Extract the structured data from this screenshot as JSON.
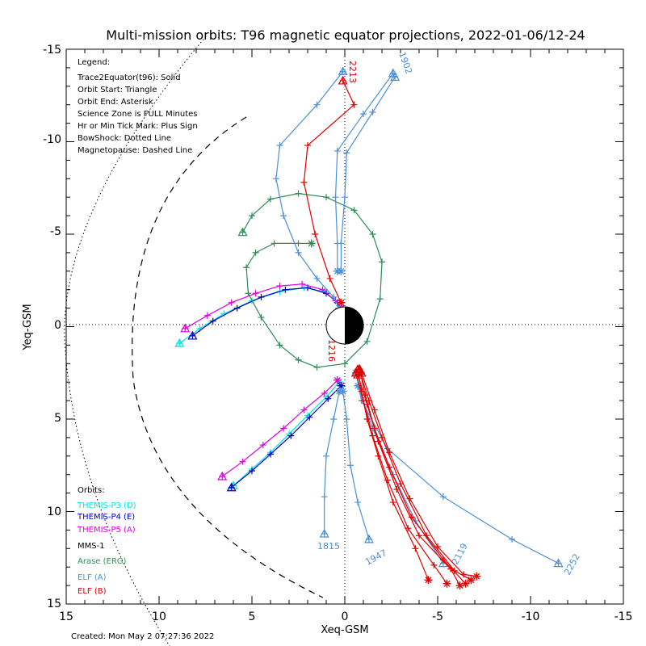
{
  "chart_data": {
    "type": "line",
    "title": "Multi-mission orbits: T96 magnetic equator projections, 2022-01-06/12-24",
    "xlabel": "Xeq-GSM",
    "ylabel": "Yeq-GSM",
    "xlim": [
      15,
      -15
    ],
    "ylim": [
      15,
      -15
    ],
    "x_ticks": [
      "15",
      "10",
      "5",
      "0",
      "-5",
      "-10",
      "-15"
    ],
    "y_ticks": [
      "-15",
      "-10",
      "-5",
      "0",
      "5",
      "10",
      "15"
    ],
    "legend_title": "Legend:",
    "legend_lines": [
      "Trace2Equator(t96): Solid",
      "Orbit Start: Triangle",
      "Orbit End: Asterisk",
      "Science Zone is FULL Minutes",
      "Hr or Min Tick Mark: Plus Sign",
      "BowShock: Dotted Line",
      "Magnetopause: Dashed Line"
    ],
    "orbits_title": "Orbits:",
    "missions": [
      {
        "name": "THEMIS-P3 (D)",
        "color": "#00e5e5"
      },
      {
        "name": "THEMIS-P4 (E)",
        "color": "#0000c8"
      },
      {
        "name": "THEMIS-P5 (A)",
        "color": "#e000e0"
      },
      {
        "name": "MMS-1",
        "color": "#000000"
      },
      {
        "name": "Arase (ERG)",
        "color": "#2e8b57"
      },
      {
        "name": "ELF (A)",
        "color": "#4a90d9"
      },
      {
        "name": "ELF (B)",
        "color": "#e00000"
      }
    ],
    "annotations": [
      "2213",
      "1902",
      "1216",
      "1815",
      "1947",
      "2252",
      "2119"
    ],
    "footer": "Created: Mon May  2 07:27:36 2022",
    "series": [
      {
        "name": "THEMIS-P3 (D)",
        "color": "#00e5e5",
        "points": [
          [
            8.9,
            0.9
          ],
          [
            7.8,
            0.1
          ],
          [
            6.5,
            -0.7
          ],
          [
            5.0,
            -1.4
          ],
          [
            3.5,
            -1.9
          ],
          [
            2.2,
            -2.1
          ],
          [
            1.1,
            -1.9
          ],
          [
            0.4,
            -1.3
          ],
          [
            0.2,
            -1.0
          ]
        ]
      },
      {
        "name": "THEMIS-P4 (E)",
        "color": "#0000c8",
        "points": [
          [
            8.2,
            0.5
          ],
          [
            7.1,
            -0.3
          ],
          [
            5.8,
            -1.0
          ],
          [
            4.5,
            -1.6
          ],
          [
            3.2,
            -2.0
          ],
          [
            2.0,
            -2.1
          ],
          [
            1.0,
            -1.8
          ],
          [
            0.4,
            -1.3
          ],
          [
            0.2,
            -1.0
          ]
        ]
      },
      {
        "name": "THEMIS-P5 (A)",
        "color": "#e000e0",
        "points": [
          [
            8.6,
            0.1
          ],
          [
            7.4,
            -0.6
          ],
          [
            6.1,
            -1.3
          ],
          [
            4.8,
            -1.8
          ],
          [
            3.5,
            -2.2
          ],
          [
            2.3,
            -2.3
          ],
          [
            1.2,
            -2.0
          ],
          [
            0.5,
            -1.4
          ],
          [
            0.2,
            -1.0
          ]
        ]
      },
      {
        "name": "THEMIS-P3 (D) dusk",
        "color": "#00e5e5",
        "points": [
          [
            6.0,
            8.6
          ],
          [
            5.0,
            7.7
          ],
          [
            4.0,
            6.8
          ],
          [
            3.0,
            5.8
          ],
          [
            2.0,
            4.8
          ],
          [
            1.0,
            3.8
          ],
          [
            0.3,
            3.0
          ]
        ]
      },
      {
        "name": "THEMIS-P4 (E) dusk",
        "color": "#0000c8",
        "points": [
          [
            6.1,
            8.7
          ],
          [
            5.0,
            7.8
          ],
          [
            4.0,
            6.9
          ],
          [
            2.9,
            5.9
          ],
          [
            1.9,
            4.9
          ],
          [
            0.9,
            3.9
          ],
          [
            0.2,
            3.2
          ]
        ]
      },
      {
        "name": "THEMIS-P5 (A) dusk",
        "color": "#e000e0",
        "points": [
          [
            6.6,
            8.1
          ],
          [
            5.5,
            7.3
          ],
          [
            4.4,
            6.4
          ],
          [
            3.3,
            5.5
          ],
          [
            2.2,
            4.5
          ],
          [
            1.1,
            3.6
          ],
          [
            0.4,
            2.9
          ]
        ]
      },
      {
        "name": "Arase (ERG)",
        "color": "#2e8b57",
        "points": [
          [
            5.5,
            -5.1
          ],
          [
            5.0,
            -6.0
          ],
          [
            4.0,
            -6.9
          ],
          [
            2.5,
            -7.2
          ],
          [
            1.0,
            -7.0
          ],
          [
            -0.5,
            -6.3
          ],
          [
            -1.5,
            -5.0
          ],
          [
            -2.0,
            -3.5
          ],
          [
            -1.9,
            -1.5
          ],
          [
            -1.2,
            0.8
          ],
          [
            0.0,
            2.0
          ],
          [
            1.5,
            2.2
          ],
          [
            2.5,
            1.8
          ],
          [
            3.5,
            1.0
          ],
          [
            4.5,
            -0.5
          ],
          [
            5.2,
            -1.8
          ],
          [
            5.3,
            -3.2
          ],
          [
            4.8,
            -4.0
          ],
          [
            3.8,
            -4.5
          ],
          [
            2.5,
            -4.5
          ],
          [
            1.8,
            -4.5
          ]
        ]
      },
      {
        "name": "ELF (A)",
        "color": "#4a90d9",
        "points": [
          [
            0.1,
            -13.8
          ],
          [
            1.5,
            -12.0
          ],
          [
            3.5,
            -9.8
          ],
          [
            3.7,
            -8.0
          ],
          [
            3.3,
            -6.0
          ],
          [
            2.5,
            -4.0
          ],
          [
            1.5,
            -2.6
          ],
          [
            0.6,
            -1.6
          ],
          [
            0.3,
            -1.0
          ]
        ]
      },
      {
        "name": "ELF (A) 1902",
        "color": "#4a90d9",
        "points": [
          [
            -2.6,
            -13.7
          ],
          [
            -1.0,
            -11.5
          ],
          [
            0.4,
            -9.5
          ],
          [
            0.5,
            -7.0
          ],
          [
            0.4,
            -4.5
          ],
          [
            0.4,
            -3.0
          ]
        ]
      },
      {
        "name": "ELF (A) 1902b",
        "color": "#4a90d9",
        "points": [
          [
            -2.7,
            -13.5
          ],
          [
            -1.5,
            -11.6
          ],
          [
            -0.1,
            -9.4
          ],
          [
            0.0,
            -7.0
          ],
          [
            0.2,
            -4.5
          ],
          [
            0.2,
            -3.0
          ]
        ]
      },
      {
        "name": "ELF (A) 1815",
        "color": "#4a90d9",
        "points": [
          [
            1.1,
            11.2
          ],
          [
            1.1,
            9.2
          ],
          [
            1.0,
            7.0
          ],
          [
            0.6,
            5.0
          ],
          [
            0.3,
            3.5
          ]
        ]
      },
      {
        "name": "ELF (A) 1947",
        "color": "#4a90d9",
        "points": [
          [
            -1.3,
            11.5
          ],
          [
            -0.7,
            9.5
          ],
          [
            -0.3,
            7.5
          ],
          [
            -0.1,
            5.0
          ],
          [
            0.1,
            3.5
          ]
        ]
      },
      {
        "name": "ELF (A) 2252",
        "color": "#4a90d9",
        "points": [
          [
            -11.5,
            12.8
          ],
          [
            -9.0,
            11.5
          ],
          [
            -5.3,
            9.2
          ],
          [
            -2.3,
            6.6
          ],
          [
            -0.9,
            4.0
          ],
          [
            -0.6,
            2.5
          ]
        ]
      },
      {
        "name": "ELF (A) 2119",
        "color": "#4a90d9",
        "points": [
          [
            -5.3,
            12.8
          ],
          [
            -3.8,
            10.5
          ],
          [
            -2.6,
            8.0
          ],
          [
            -1.5,
            5.5
          ],
          [
            -0.7,
            3.2
          ]
        ]
      },
      {
        "name": "ELF (B)",
        "color": "#e00000",
        "points": [
          [
            0.1,
            -13.3
          ],
          [
            -0.5,
            -12.0
          ],
          [
            2.0,
            -9.8
          ],
          [
            2.2,
            -7.8
          ],
          [
            1.6,
            -5.0
          ],
          [
            0.8,
            -2.6
          ],
          [
            0.2,
            -1.3
          ]
        ]
      },
      {
        "name": "ELF (B) 1216",
        "color": "#e00000",
        "points": [
          [
            -0.7,
            2.3
          ],
          [
            -0.9,
            3.5
          ],
          [
            -1.2,
            5.0
          ],
          [
            -1.8,
            7.0
          ],
          [
            -2.6,
            9.5
          ],
          [
            -3.8,
            12.0
          ],
          [
            -4.5,
            13.7
          ]
        ]
      },
      {
        "name": "ELF (B) b",
        "color": "#e00000",
        "points": [
          [
            -0.8,
            2.3
          ],
          [
            -1.1,
            3.7
          ],
          [
            -1.6,
            5.5
          ],
          [
            -2.4,
            7.6
          ],
          [
            -3.6,
            10.3
          ],
          [
            -5.3,
            12.6
          ],
          [
            -6.5,
            13.9
          ]
        ]
      },
      {
        "name": "ELF (B) c",
        "color": "#e00000",
        "points": [
          [
            -0.8,
            2.4
          ],
          [
            -1.3,
            4.0
          ],
          [
            -2.0,
            6.0
          ],
          [
            -3.0,
            8.5
          ],
          [
            -4.4,
            11.3
          ],
          [
            -5.9,
            13.2
          ],
          [
            -6.8,
            13.7
          ]
        ]
      },
      {
        "name": "ELF (B) d",
        "color": "#e00000",
        "points": [
          [
            -0.9,
            2.5
          ],
          [
            -1.6,
            4.5
          ],
          [
            -2.4,
            6.8
          ],
          [
            -3.5,
            9.3
          ],
          [
            -5.0,
            11.9
          ],
          [
            -6.4,
            13.4
          ],
          [
            -7.1,
            13.5
          ]
        ]
      },
      {
        "name": "ELF (B) e",
        "color": "#e00000",
        "points": [
          [
            -0.7,
            2.6
          ],
          [
            -1.2,
            4.2
          ],
          [
            -1.8,
            6.2
          ],
          [
            -2.8,
            8.8
          ],
          [
            -4.0,
            11.3
          ],
          [
            -5.7,
            13.1
          ],
          [
            -6.2,
            14.0
          ]
        ]
      },
      {
        "name": "ELF (B) f",
        "color": "#e00000",
        "points": [
          [
            -0.6,
            2.5
          ],
          [
            -1.0,
            4.0
          ],
          [
            -1.5,
            5.9
          ],
          [
            -2.3,
            8.3
          ],
          [
            -3.4,
            10.9
          ],
          [
            -4.8,
            12.9
          ],
          [
            -5.5,
            13.9
          ]
        ]
      }
    ],
    "bow_shock": "dotted",
    "magnetopause": "dashed",
    "grid": false
  }
}
